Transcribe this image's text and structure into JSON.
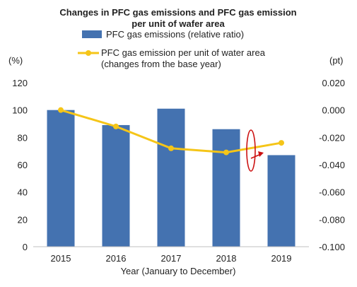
{
  "chart_data": {
    "type": "bar",
    "title_lines": [
      "Changes in PFC gas emissions and PFC gas emission",
      "per unit of wafer area"
    ],
    "categories": [
      "2015",
      "2016",
      "2017",
      "2018",
      "2019"
    ],
    "xlabel": "Year (January to December)",
    "left_axis": {
      "unit": "(%)",
      "ticks": [
        "120",
        "100",
        "80",
        "60",
        "40",
        "20",
        "0"
      ],
      "ylim": [
        0,
        120
      ]
    },
    "right_axis": {
      "unit": "(pt)",
      "ticks": [
        "0.020",
        "0.000",
        "-0.020",
        "-0.040",
        "-0.060",
        "-0.080",
        "-0.100"
      ],
      "ylim": [
        -0.1,
        0.02
      ]
    },
    "series": [
      {
        "name": "PFC gas emissions (relative ratio)",
        "type": "bar",
        "axis": "left",
        "color": "#4472b0",
        "values": [
          100,
          89,
          101,
          86,
          67
        ]
      },
      {
        "name_lines": [
          "PFC gas emission per unit of water area",
          "(changes from the base year)"
        ],
        "type": "line",
        "axis": "right",
        "color": "#f5c518",
        "values": [
          0.0,
          -0.012,
          -0.028,
          -0.031,
          -0.024
        ]
      }
    ],
    "annotation": {
      "type": "curved-arrow",
      "color": "#cc1111",
      "position": "between 2018 and 2019"
    },
    "grid": false,
    "legend_position": "top"
  }
}
